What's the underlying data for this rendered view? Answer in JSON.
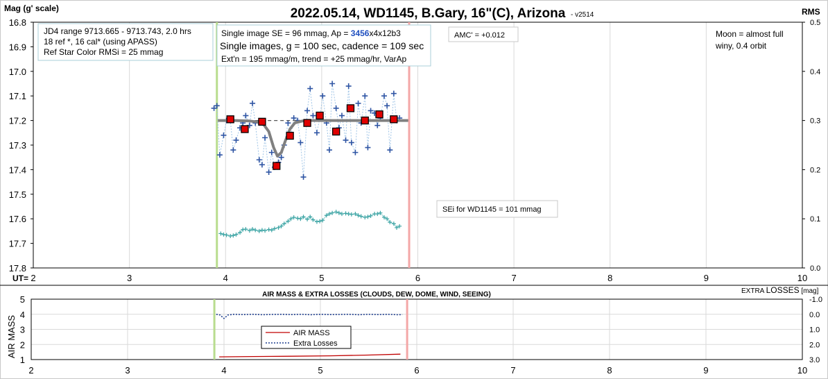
{
  "title": "2022.05.14, WD1145, B.Gary, 16\"(C), Arizona",
  "version": "- v2514",
  "chart_data": [
    {
      "type": "scatter",
      "ylabel": "Mag (g' scale)",
      "y2label": "RMS",
      "xaxis_prefix": "UT=",
      "xlim": [
        2,
        10
      ],
      "ylim": [
        16.8,
        17.8
      ],
      "y2lim": [
        0,
        0.5
      ],
      "y_reversed": true,
      "x_ticks": [
        "2",
        "3",
        "4",
        "5",
        "6",
        "7",
        "8",
        "9",
        "10"
      ],
      "y_ticks": [
        "16.8",
        "16.9",
        "17.0",
        "17.1",
        "17.2",
        "17.3",
        "17.4",
        "17.5",
        "17.6",
        "17.7",
        "17.8"
      ],
      "y2_ticks": [
        "0.5",
        "0.4",
        "0.3",
        "0.2",
        "0.1",
        "0.0"
      ],
      "vlines": [
        {
          "x": 3.91,
          "color": "#b8dc8e"
        },
        {
          "x": 5.91,
          "color": "#f4a7a7"
        }
      ],
      "individual": {
        "x": [
          3.88,
          3.91,
          3.94,
          3.98,
          4.01,
          4.05,
          4.08,
          4.11,
          4.15,
          4.18,
          4.21,
          4.25,
          4.28,
          4.31,
          4.35,
          4.38,
          4.41,
          4.45,
          4.48,
          4.51,
          4.55,
          4.58,
          4.61,
          4.65,
          4.68,
          4.71,
          4.75,
          4.78,
          4.81,
          4.85,
          4.88,
          4.91,
          4.95,
          4.98,
          5.01,
          5.05,
          5.08,
          5.11,
          5.15,
          5.18,
          5.21,
          5.25,
          5.28,
          5.31,
          5.35,
          5.38,
          5.41,
          5.45,
          5.48,
          5.51,
          5.55,
          5.58,
          5.61,
          5.65,
          5.68,
          5.71,
          5.75,
          5.78,
          5.81
        ],
        "y": [
          17.15,
          17.14,
          17.34,
          17.26,
          17.2,
          17.2,
          17.32,
          17.28,
          17.23,
          17.21,
          17.18,
          17.22,
          17.13,
          17.21,
          17.36,
          17.38,
          17.27,
          17.41,
          17.33,
          17.39,
          17.37,
          17.35,
          17.3,
          17.21,
          17.26,
          17.19,
          17.2,
          17.29,
          17.43,
          17.16,
          17.07,
          17.18,
          17.25,
          17.19,
          17.1,
          17.21,
          17.32,
          17.05,
          17.15,
          17.23,
          17.18,
          17.28,
          17.06,
          17.29,
          17.33,
          17.13,
          17.21,
          17.1,
          17.31,
          17.16,
          17.17,
          17.22,
          17.19,
          17.1,
          17.14,
          17.32,
          17.09,
          17.2,
          17.19
        ]
      },
      "binned": {
        "x": [
          4.05,
          4.2,
          4.38,
          4.53,
          4.67,
          4.85,
          4.98,
          5.15,
          5.3,
          5.45,
          5.6,
          5.75
        ],
        "y": [
          17.195,
          17.235,
          17.205,
          17.385,
          17.262,
          17.21,
          17.18,
          17.245,
          17.15,
          17.2,
          17.175,
          17.195
        ]
      },
      "model": {
        "x": [
          3.92,
          4.1,
          4.25,
          4.33,
          4.4,
          4.45,
          4.5,
          4.54,
          4.58,
          4.62,
          4.67,
          4.72,
          4.8,
          4.9,
          5.2,
          5.9
        ],
        "y": [
          17.2,
          17.2,
          17.202,
          17.206,
          17.218,
          17.245,
          17.31,
          17.345,
          17.33,
          17.285,
          17.235,
          17.21,
          17.202,
          17.2,
          17.2,
          17.2
        ]
      },
      "reference_line": {
        "x": [
          4.05,
          5.9
        ],
        "y": 17.2
      },
      "rms": {
        "x": [
          3.95,
          3.98,
          4.01,
          4.05,
          4.08,
          4.11,
          4.15,
          4.18,
          4.21,
          4.25,
          4.28,
          4.31,
          4.35,
          4.38,
          4.41,
          4.45,
          4.48,
          4.51,
          4.55,
          4.58,
          4.61,
          4.65,
          4.68,
          4.71,
          4.75,
          4.78,
          4.81,
          4.85,
          4.88,
          4.91,
          4.95,
          4.98,
          5.01,
          5.05,
          5.08,
          5.11,
          5.15,
          5.18,
          5.21,
          5.25,
          5.28,
          5.31,
          5.35,
          5.38,
          5.41,
          5.45,
          5.48,
          5.51,
          5.55,
          5.58,
          5.61,
          5.65,
          5.68,
          5.71,
          5.75,
          5.78,
          5.81
        ],
        "y": [
          0.07,
          0.068,
          0.067,
          0.065,
          0.066,
          0.068,
          0.072,
          0.078,
          0.079,
          0.076,
          0.079,
          0.077,
          0.075,
          0.077,
          0.076,
          0.078,
          0.077,
          0.08,
          0.082,
          0.085,
          0.09,
          0.095,
          0.1,
          0.103,
          0.101,
          0.1,
          0.104,
          0.099,
          0.104,
          0.098,
          0.094,
          0.095,
          0.097,
          0.107,
          0.11,
          0.112,
          0.114,
          0.112,
          0.11,
          0.111,
          0.11,
          0.109,
          0.11,
          0.107,
          0.105,
          0.103,
          0.104,
          0.106,
          0.11,
          0.11,
          0.112,
          0.103,
          0.1,
          0.093,
          0.09,
          0.082,
          0.085
        ]
      },
      "notes": {
        "box1": [
          "JD4 range 9713.665 - 9713.743, 2.0 hrs",
          "18 ref *, 16 cal* (using APASS)",
          "Ref Star Color RMSi = 25 mmag"
        ],
        "box2_line1_a": "Single image SE = 96 mmag, Ap = ",
        "box2_line1_b": "3456",
        "box2_line1_c": "x4x12b3",
        "box2_line2": "Single images, g = 100 sec, cadence = 109 sec",
        "box2_line3": "Ext'n = 195 mmag/m, trend = +25 mmag/hr, VarAp",
        "amc": "AMC' = +0.012",
        "moon": [
          "Moon = almost full",
          "winy,  0.4 orbit"
        ],
        "sei": "SEi for WD1145 = 101 mmag"
      }
    },
    {
      "type": "line",
      "title": "AIR MASS & EXTRA LOSSES (CLOUDS, DEW, DOME, WIND, SEEING)",
      "ylabel": "AIR MASS",
      "y2label_a": "EXTRA ",
      "y2label_b": "LOSSES",
      "y2label_c": " [mag]",
      "xlim": [
        2,
        10
      ],
      "ylim": [
        1,
        5
      ],
      "y2lim": [
        -1.0,
        3.0
      ],
      "x_ticks": [
        "2",
        "3",
        "4",
        "5",
        "6",
        "7",
        "8",
        "9",
        "10"
      ],
      "y_ticks": [
        "5",
        "4",
        "3",
        "2",
        "1"
      ],
      "y2_ticks": [
        "-1.0",
        "0.0",
        "1.0",
        "2.0",
        "3.0"
      ],
      "vlines": [
        {
          "x": 3.9,
          "color": "#b8dc8e"
        },
        {
          "x": 5.9,
          "color": "#f4a7a7"
        }
      ],
      "series": [
        {
          "name": "AIR MASS",
          "color": "#c00000",
          "x": [
            3.95,
            4.3,
            4.7,
            5.1,
            5.5,
            5.83
          ],
          "y": [
            1.18,
            1.2,
            1.22,
            1.25,
            1.3,
            1.36
          ]
        },
        {
          "name": "Extra Losses",
          "color": "#1f3f8f",
          "x": [
            3.92,
            3.96,
            4.0,
            4.04,
            4.1,
            4.2,
            4.3,
            4.4,
            4.5,
            4.6,
            4.7,
            4.8,
            4.9,
            5.0,
            5.1,
            5.2,
            5.3,
            5.4,
            5.5,
            5.6,
            5.7,
            5.8,
            5.85
          ],
          "y": [
            0.0,
            0.05,
            0.28,
            0.05,
            0.0,
            0.02,
            0.0,
            0.03,
            0.01,
            0.0,
            0.02,
            0.0,
            0.03,
            0.0,
            0.02,
            0.01,
            0.0,
            0.03,
            0.0,
            0.02,
            0.0,
            0.03,
            0.02
          ]
        }
      ]
    }
  ]
}
